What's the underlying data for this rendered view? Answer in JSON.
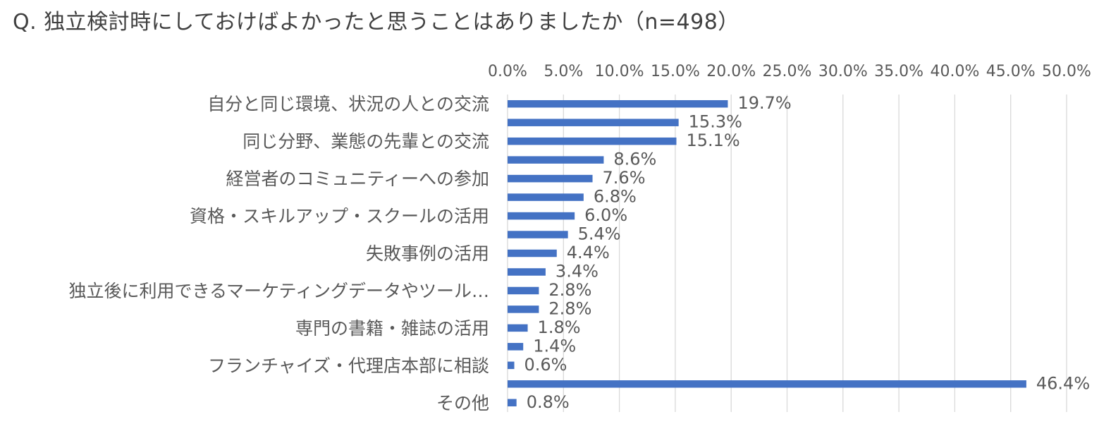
{
  "chart_data": {
    "type": "bar",
    "orientation": "horizontal",
    "title": "Q. 独立検討時にしておけばよかったと思うことはありましたか（n=498）",
    "xlim": [
      0,
      50
    ],
    "tick_values": [
      0,
      5,
      10,
      15,
      20,
      25,
      30,
      35,
      40,
      45,
      50
    ],
    "tick_labels": [
      "0.0%",
      "5.0%",
      "10.0%",
      "15.0%",
      "20.0%",
      "25.0%",
      "30.0%",
      "35.0%",
      "40.0%",
      "45.0%",
      "50.0%"
    ],
    "grid": true,
    "categories": [
      "自分と同じ環境、状況の人との交流",
      "",
      "同じ分野、業態の先輩との交流",
      "",
      "経営者のコミュニティーへの参加",
      "",
      "資格・スキルアップ・スクールの活用",
      "",
      "失敗事例の活用",
      "",
      "独立後に利用できるマーケティングデータやツール…",
      "",
      "専門の書籍・雑誌の活用",
      "",
      "フランチャイズ・代理店本部に相談",
      "",
      "その他"
    ],
    "values": [
      19.7,
      15.3,
      15.1,
      8.6,
      7.6,
      6.8,
      6.0,
      5.4,
      4.4,
      3.4,
      2.8,
      2.8,
      1.8,
      1.4,
      0.6,
      46.4,
      0.8
    ],
    "value_labels": [
      "19.7%",
      "15.3%",
      "15.1%",
      "8.6%",
      "7.6%",
      "6.8%",
      "6.0%",
      "5.4%",
      "4.4%",
      "3.4%",
      "2.8%",
      "2.8%",
      "1.8%",
      "1.4%",
      "0.6%",
      "46.4%",
      "0.8%"
    ],
    "bar_color": "#4472C4",
    "grid_color": "#D9D9D9"
  }
}
